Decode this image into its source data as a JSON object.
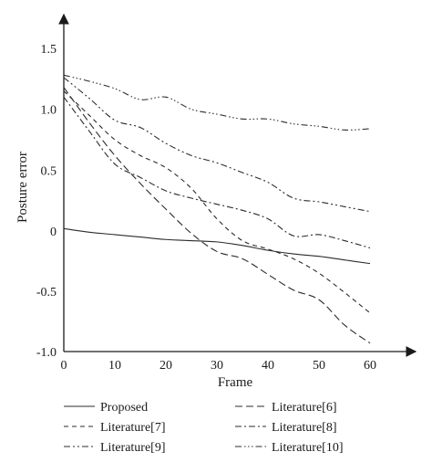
{
  "chart_data": {
    "type": "line",
    "title": "",
    "xlabel": "Frame",
    "ylabel": "Posture error",
    "xlim": [
      0,
      60
    ],
    "ylim": [
      -1.0,
      1.5
    ],
    "x_ticks": [
      0,
      10,
      20,
      30,
      40,
      50,
      60
    ],
    "y_ticks": [
      {
        "value": 1.5,
        "label": "1.5"
      },
      {
        "value": 1.0,
        "label": "1.0"
      },
      {
        "value": 0.5,
        "label": "0.5"
      },
      {
        "value": 0.0,
        "label": "0"
      },
      {
        "value": -0.5,
        "label": "-0.5"
      },
      {
        "value": -1.0,
        "label": "-1.0"
      }
    ],
    "grid": false,
    "legend_position": "bottom",
    "line_color": "#2b2b2b",
    "series": [
      {
        "name": "Proposed",
        "dash": "solid",
        "x": [
          0,
          5,
          10,
          15,
          20,
          25,
          30,
          35,
          40,
          45,
          50,
          55,
          60
        ],
        "y": [
          0.02,
          -0.01,
          -0.03,
          -0.05,
          -0.07,
          -0.08,
          -0.09,
          -0.12,
          -0.16,
          -0.19,
          -0.21,
          -0.24,
          -0.27
        ]
      },
      {
        "name": "Literature[6]",
        "dash": "long-dash",
        "x": [
          0,
          5,
          10,
          15,
          20,
          25,
          30,
          35,
          40,
          45,
          50,
          55,
          60
        ],
        "y": [
          1.18,
          0.89,
          0.62,
          0.39,
          0.18,
          -0.02,
          -0.17,
          -0.23,
          -0.36,
          -0.49,
          -0.57,
          -0.78,
          -0.93
        ]
      },
      {
        "name": "Literature[7]",
        "dash": "dash",
        "x": [
          0,
          5,
          10,
          15,
          20,
          25,
          30,
          35,
          40,
          45,
          50,
          55,
          60
        ],
        "y": [
          1.15,
          0.95,
          0.75,
          0.62,
          0.52,
          0.35,
          0.1,
          -0.08,
          -0.15,
          -0.23,
          -0.35,
          -0.51,
          -0.68
        ]
      },
      {
        "name": "Literature[8]",
        "dash": "dash-dot",
        "x": [
          0,
          5,
          10,
          15,
          20,
          25,
          30,
          35,
          40,
          45,
          50,
          55,
          60
        ],
        "y": [
          1.1,
          0.82,
          0.55,
          0.44,
          0.33,
          0.27,
          0.22,
          0.17,
          0.1,
          -0.04,
          -0.03,
          -0.08,
          -0.14
        ]
      },
      {
        "name": "Literature[9]",
        "dash": "dash-dot-dot",
        "x": [
          0,
          5,
          10,
          15,
          20,
          25,
          30,
          35,
          40,
          45,
          50,
          55,
          60
        ],
        "y": [
          1.26,
          1.09,
          0.91,
          0.85,
          0.72,
          0.62,
          0.56,
          0.48,
          0.4,
          0.27,
          0.24,
          0.2,
          0.16
        ]
      },
      {
        "name": "Literature[10]",
        "dash": "dash-dot-dot-dot",
        "x": [
          0,
          5,
          10,
          15,
          20,
          25,
          30,
          35,
          40,
          45,
          50,
          55,
          60
        ],
        "y": [
          1.28,
          1.23,
          1.17,
          1.08,
          1.1,
          1.0,
          0.96,
          0.92,
          0.92,
          0.88,
          0.86,
          0.83,
          0.84
        ]
      }
    ]
  }
}
